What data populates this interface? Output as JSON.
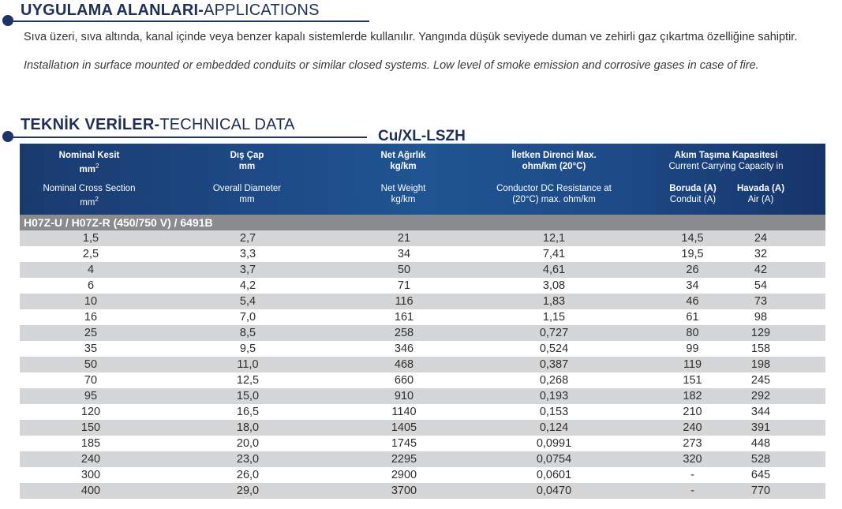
{
  "applications": {
    "title_tr": "UYGULAMA ALANLARI-",
    "title_en": "APPLICATIONS",
    "text_tr": "Sıva üzeri, sıva altında, kanal içinde veya benzer kapalı sistemlerde kullanılır. Yangında düşük seviyede duman ve zehirli gaz çıkartma özelliğine sahiptir.",
    "text_en": "Installatıon in surface mounted or embedded conduits or similar closed systems. Low level of smoke emission and corrosive gases in case of fire."
  },
  "technical": {
    "title_tr": "TEKNİK VERİLER-",
    "title_en": "TECHNICAL DATA",
    "subtitle": "Cu/XL-LSZH"
  },
  "table": {
    "headers": {
      "cross_section": {
        "tr": "Nominal Kesit",
        "tr_unit": "mm",
        "en": "Nominal Cross Section",
        "en_unit": "mm",
        "sup": "2"
      },
      "diameter": {
        "tr": "Dış Çap",
        "tr_unit": "mm",
        "en": "Overall Diameter",
        "en_unit": "mm"
      },
      "weight": {
        "tr": "Net Ağırlık",
        "tr_unit": "kg/km",
        "en": "Net Weight",
        "en_unit": "kg/km"
      },
      "resistance": {
        "tr": "İletken Direnci Max.",
        "tr_unit": "ohm/km (20°C)",
        "en": "Conductor DC Resistance at",
        "en_unit": "(20°C) max. ohm/km"
      },
      "capacity": {
        "tr": "Akım Taşıma Kapasitesi",
        "en": "Current Carrying Capacity in"
      },
      "conduit": {
        "tr": "Boruda (A)",
        "en": "Conduit (A)"
      },
      "air": {
        "tr": "Havada (A)",
        "en": "Air (A)"
      }
    },
    "group": "H07Z-U / H07Z-R (450/750 V) / 6491B",
    "rows": [
      [
        "1,5",
        "2,7",
        "21",
        "12,1",
        "14,5",
        "24"
      ],
      [
        "2,5",
        "3,3",
        "34",
        "7,41",
        "19,5",
        "32"
      ],
      [
        "4",
        "3,7",
        "50",
        "4,61",
        "26",
        "42"
      ],
      [
        "6",
        "4,2",
        "71",
        "3,08",
        "34",
        "54"
      ],
      [
        "10",
        "5,4",
        "116",
        "1,83",
        "46",
        "73"
      ],
      [
        "16",
        "7,0",
        "161",
        "1,15",
        "61",
        "98"
      ],
      [
        "25",
        "8,5",
        "258",
        "0,727",
        "80",
        "129"
      ],
      [
        "35",
        "9,5",
        "346",
        "0,524",
        "99",
        "158"
      ],
      [
        "50",
        "11,0",
        "468",
        "0,387",
        "119",
        "198"
      ],
      [
        "70",
        "12,5",
        "660",
        "0,268",
        "151",
        "245"
      ],
      [
        "95",
        "15,0",
        "910",
        "0,193",
        "182",
        "292"
      ],
      [
        "120",
        "16,5",
        "1140",
        "0,153",
        "210",
        "344"
      ],
      [
        "150",
        "18,0",
        "1405",
        "0,124",
        "240",
        "391"
      ],
      [
        "185",
        "20,0",
        "1745",
        "0,0991",
        "273",
        "448"
      ],
      [
        "240",
        "23,0",
        "2295",
        "0,0754",
        "320",
        "528"
      ],
      [
        "300",
        "26,0",
        "2900",
        "0,0601",
        "-",
        "645"
      ],
      [
        "400",
        "29,0",
        "3700",
        "0,0470",
        "-",
        "770"
      ]
    ]
  }
}
